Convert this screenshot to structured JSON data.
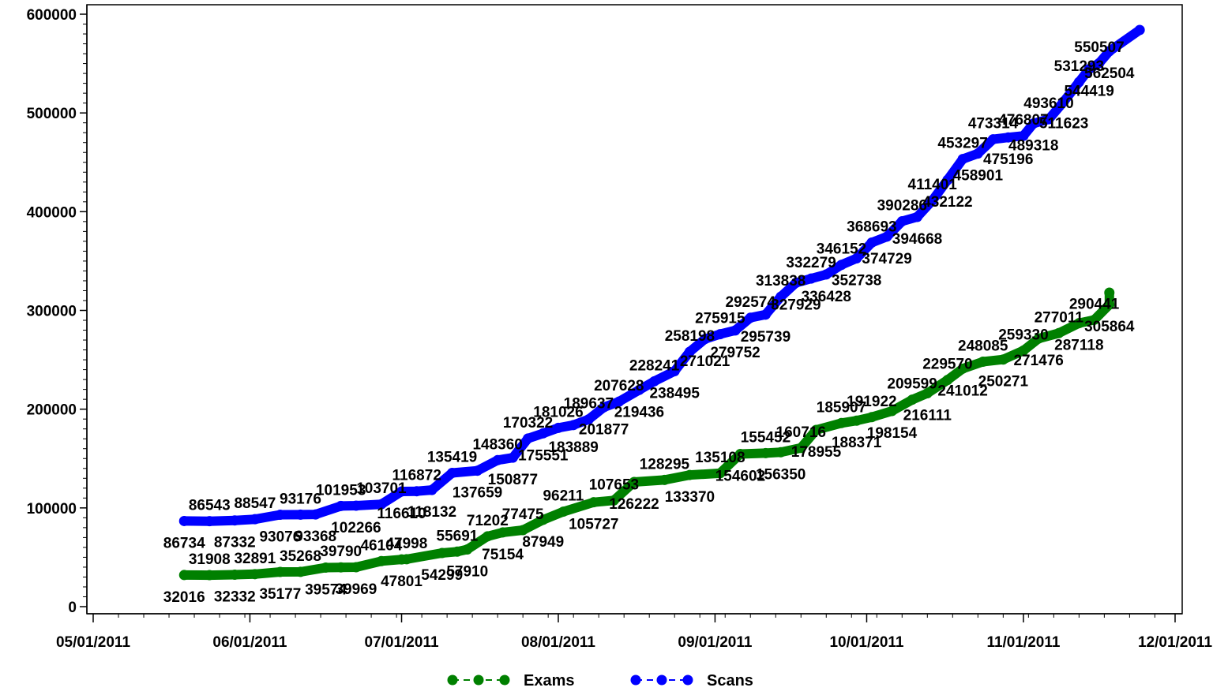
{
  "chart_data": {
    "type": "line",
    "title": "",
    "xlabel": "",
    "ylabel": "",
    "grid": false,
    "legend_position": "bottom-center",
    "xlim": [
      "2011-05-01",
      "2011-12-01"
    ],
    "ylim": [
      0,
      600000
    ],
    "x_ticks": [
      "05/01/2011",
      "06/01/2011",
      "07/01/2011",
      "08/01/2011",
      "09/01/2011",
      "10/01/2011",
      "11/01/2011",
      "12/01/2011"
    ],
    "y_ticks": [
      "0",
      "100000",
      "200000",
      "300000",
      "400000",
      "500000",
      "600000"
    ],
    "series": [
      {
        "name": "Exams",
        "color": "#008000",
        "points": [
          [
            "2011-05-19",
            32016
          ],
          [
            "2011-05-24",
            31908
          ],
          [
            "2011-05-29",
            32332
          ],
          [
            "2011-06-02",
            32891
          ],
          [
            "2011-06-07",
            35177
          ],
          [
            "2011-06-11",
            35268
          ],
          [
            "2011-06-16",
            39574
          ],
          [
            "2011-06-19",
            39790
          ],
          [
            "2011-06-22",
            39969
          ],
          [
            "2011-06-27",
            46104
          ],
          [
            "2011-07-01",
            47801
          ],
          [
            "2011-07-02",
            47998
          ],
          [
            "2011-07-09",
            54299
          ],
          [
            "2011-07-12",
            55691
          ],
          [
            "2011-07-14",
            57910
          ],
          [
            "2011-07-18",
            71202
          ],
          [
            "2011-07-21",
            75154
          ],
          [
            "2011-07-25",
            77475
          ],
          [
            "2011-07-29",
            87949
          ],
          [
            "2011-08-02",
            96211
          ],
          [
            "2011-08-08",
            105727
          ],
          [
            "2011-08-12",
            107653
          ],
          [
            "2011-08-16",
            126222
          ],
          [
            "2011-08-22",
            128295
          ],
          [
            "2011-08-27",
            133370
          ],
          [
            "2011-09-02",
            135108
          ],
          [
            "2011-09-06",
            154602
          ],
          [
            "2011-09-11",
            155452
          ],
          [
            "2011-09-14",
            156350
          ],
          [
            "2011-09-18",
            160716
          ],
          [
            "2011-09-21",
            178955
          ],
          [
            "2011-09-26",
            185907
          ],
          [
            "2011-09-29",
            188371
          ],
          [
            "2011-10-02",
            191922
          ],
          [
            "2011-10-06",
            198154
          ],
          [
            "2011-10-10",
            209599
          ],
          [
            "2011-10-13",
            216111
          ],
          [
            "2011-10-17",
            229570
          ],
          [
            "2011-10-20",
            241012
          ],
          [
            "2011-10-24",
            248085
          ],
          [
            "2011-10-28",
            250271
          ],
          [
            "2011-11-01",
            259330
          ],
          [
            "2011-11-04",
            271476
          ],
          [
            "2011-11-08",
            277011
          ],
          [
            "2011-11-12",
            287118
          ],
          [
            "2011-11-15",
            290441
          ],
          [
            "2011-11-18",
            305864
          ]
        ]
      },
      {
        "name": "Scans",
        "color": "#0000ff",
        "points": [
          [
            "2011-05-19",
            86734
          ],
          [
            "2011-05-24",
            86543
          ],
          [
            "2011-05-29",
            87332
          ],
          [
            "2011-06-02",
            88547
          ],
          [
            "2011-06-07",
            93076
          ],
          [
            "2011-06-11",
            93176
          ],
          [
            "2011-06-14",
            93368
          ],
          [
            "2011-06-19",
            101953
          ],
          [
            "2011-06-22",
            102266
          ],
          [
            "2011-06-27",
            103701
          ],
          [
            "2011-07-01",
            116610
          ],
          [
            "2011-07-04",
            116872
          ],
          [
            "2011-07-07",
            118132
          ],
          [
            "2011-07-11",
            135419
          ],
          [
            "2011-07-16",
            137659
          ],
          [
            "2011-07-20",
            148360
          ],
          [
            "2011-07-23",
            150877
          ],
          [
            "2011-07-26",
            170322
          ],
          [
            "2011-07-29",
            175551
          ],
          [
            "2011-08-01",
            181026
          ],
          [
            "2011-08-04",
            183889
          ],
          [
            "2011-08-07",
            189637
          ],
          [
            "2011-08-10",
            201877
          ],
          [
            "2011-08-13",
            207628
          ],
          [
            "2011-08-17",
            219436
          ],
          [
            "2011-08-20",
            228241
          ],
          [
            "2011-08-24",
            238495
          ],
          [
            "2011-08-27",
            258198
          ],
          [
            "2011-08-30",
            271021
          ],
          [
            "2011-09-02",
            275915
          ],
          [
            "2011-09-05",
            279752
          ],
          [
            "2011-09-08",
            292574
          ],
          [
            "2011-09-11",
            295739
          ],
          [
            "2011-09-14",
            313838
          ],
          [
            "2011-09-17",
            327929
          ],
          [
            "2011-09-20",
            332279
          ],
          [
            "2011-09-23",
            336428
          ],
          [
            "2011-09-26",
            346152
          ],
          [
            "2011-09-29",
            352738
          ],
          [
            "2011-10-02",
            368693
          ],
          [
            "2011-10-05",
            374729
          ],
          [
            "2011-10-08",
            390286
          ],
          [
            "2011-10-11",
            394668
          ],
          [
            "2011-10-14",
            411401
          ],
          [
            "2011-10-17",
            432122
          ],
          [
            "2011-10-20",
            453297
          ],
          [
            "2011-10-23",
            458901
          ],
          [
            "2011-10-26",
            473314
          ],
          [
            "2011-10-29",
            475196
          ],
          [
            "2011-11-01",
            476807
          ],
          [
            "2011-11-03",
            489318
          ],
          [
            "2011-11-06",
            493610
          ],
          [
            "2011-11-09",
            511623
          ],
          [
            "2011-11-12",
            531293
          ],
          [
            "2011-11-14",
            544419
          ],
          [
            "2011-11-16",
            550507
          ],
          [
            "2011-11-18",
            562504
          ]
        ]
      }
    ],
    "line_end": [
      "2011-11-24",
      584000
    ],
    "exams_line_end": [
      "2011-11-18",
      318000
    ]
  }
}
